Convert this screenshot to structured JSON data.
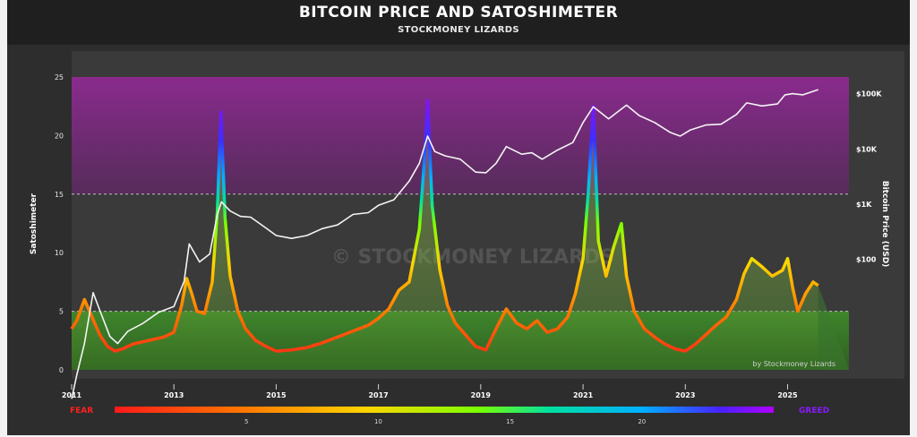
{
  "header": {
    "title": "BITCOIN PRICE AND SATOSHIMETER",
    "subtitle": "STOCKMONEY LIZARDS"
  },
  "chart_data": {
    "type": "line",
    "title": "BITCOIN PRICE AND SATOSHIMETER",
    "subtitle": "STOCKMONEY LIZARDS",
    "ylabel": "Satoshimeter",
    "y2label": "Bitcoin Price (USD)",
    "xlabel": "",
    "xlim": [
      2011.0,
      2026.2
    ],
    "ylim": [
      0,
      25
    ],
    "y2scale": "log",
    "y2lim": [
      1,
      200000
    ],
    "x_ticks": [
      "2011",
      "2013",
      "2015",
      "2017",
      "2019",
      "2021",
      "2023",
      "2025"
    ],
    "y_ticks": [
      "0",
      "5",
      "10",
      "15",
      "20",
      "25"
    ],
    "y2_ticks": [
      "$100",
      "$1K",
      "$10K",
      "$100K"
    ],
    "grid": false,
    "zones": [
      {
        "from": 0,
        "to": 5,
        "color": "#3f8f2a"
      },
      {
        "from": 15,
        "to": 25,
        "color": "#8a2a8c"
      }
    ],
    "watermark": "© STOCKMONEY LIZARDS",
    "credit": "by Stockmoney Lizards",
    "colorbar": {
      "left_label": "FEAR",
      "right_label": "GREED",
      "ticks": [
        "5",
        "10",
        "15",
        "20"
      ],
      "colors": [
        "#ff1a1a",
        "#ff7a00",
        "#ffd400",
        "#7cff00",
        "#00e0a0",
        "#00b0ff",
        "#6a00ff",
        "#b000ff"
      ]
    },
    "series": [
      {
        "name": "Satoshimeter",
        "axis": "left",
        "x": [
          2011.0,
          2011.1,
          2011.25,
          2011.4,
          2011.55,
          2011.7,
          2011.85,
          2012.0,
          2012.2,
          2012.4,
          2012.6,
          2012.8,
          2013.0,
          2013.15,
          2013.25,
          2013.35,
          2013.45,
          2013.6,
          2013.75,
          2013.85,
          2013.92,
          2014.0,
          2014.1,
          2014.25,
          2014.4,
          2014.6,
          2014.8,
          2015.0,
          2015.3,
          2015.6,
          2015.9,
          2016.2,
          2016.5,
          2016.8,
          2017.0,
          2017.2,
          2017.4,
          2017.6,
          2017.8,
          2017.9,
          2017.96,
          2018.05,
          2018.2,
          2018.35,
          2018.5,
          2018.7,
          2018.9,
          2019.1,
          2019.3,
          2019.5,
          2019.7,
          2019.9,
          2020.1,
          2020.3,
          2020.5,
          2020.7,
          2020.85,
          2021.0,
          2021.1,
          2021.2,
          2021.3,
          2021.45,
          2021.6,
          2021.75,
          2021.85,
          2022.0,
          2022.2,
          2022.4,
          2022.6,
          2022.8,
          2023.0,
          2023.2,
          2023.4,
          2023.6,
          2023.8,
          2024.0,
          2024.15,
          2024.3,
          2024.5,
          2024.7,
          2024.9,
          2025.0,
          2025.1,
          2025.2,
          2025.35,
          2025.5,
          2025.6
        ],
        "values": [
          3.5,
          4.2,
          6.0,
          4.5,
          3.0,
          2.0,
          1.6,
          1.8,
          2.2,
          2.4,
          2.6,
          2.8,
          3.2,
          5.5,
          7.8,
          6.5,
          5.0,
          4.8,
          7.5,
          13.5,
          22.0,
          13.0,
          8.0,
          5.0,
          3.5,
          2.5,
          2.0,
          1.6,
          1.7,
          1.9,
          2.3,
          2.8,
          3.3,
          3.8,
          4.4,
          5.2,
          6.8,
          7.5,
          12.0,
          18.0,
          23.0,
          14.0,
          8.5,
          5.5,
          4.0,
          3.0,
          2.0,
          1.7,
          3.5,
          5.2,
          4.0,
          3.5,
          4.2,
          3.2,
          3.5,
          4.5,
          6.5,
          9.5,
          15.0,
          22.5,
          11.0,
          8.0,
          10.5,
          12.5,
          8.0,
          5.0,
          3.5,
          2.8,
          2.2,
          1.8,
          1.6,
          2.2,
          3.0,
          3.8,
          4.5,
          6.0,
          8.2,
          9.5,
          8.8,
          8.0,
          8.5,
          9.5,
          7.0,
          5.0,
          6.5,
          7.5,
          7.2
        ]
      },
      {
        "name": "Bitcoin Price",
        "axis": "right",
        "x": [
          2011.0,
          2011.1,
          2011.25,
          2011.42,
          2011.55,
          2011.75,
          2011.9,
          2012.1,
          2012.4,
          2012.7,
          2013.0,
          2013.2,
          2013.3,
          2013.5,
          2013.7,
          2013.85,
          2013.93,
          2014.1,
          2014.3,
          2014.5,
          2014.8,
          2015.0,
          2015.3,
          2015.6,
          2015.9,
          2016.2,
          2016.5,
          2016.8,
          2017.0,
          2017.3,
          2017.6,
          2017.8,
          2017.96,
          2018.1,
          2018.3,
          2018.6,
          2018.9,
          2019.1,
          2019.3,
          2019.5,
          2019.8,
          2020.0,
          2020.2,
          2020.5,
          2020.8,
          2021.0,
          2021.2,
          2021.5,
          2021.85,
          2022.1,
          2022.4,
          2022.7,
          2022.9,
          2023.1,
          2023.4,
          2023.7,
          2024.0,
          2024.2,
          2024.5,
          2024.8,
          2024.95,
          2025.1,
          2025.3,
          2025.5,
          2025.6
        ],
        "values": [
          0.3,
          0.8,
          3.0,
          25,
          12,
          4,
          3,
          5,
          7,
          11,
          14,
          40,
          190,
          90,
          125,
          650,
          1100,
          750,
          600,
          580,
          370,
          270,
          240,
          270,
          360,
          420,
          650,
          700,
          950,
          1200,
          2600,
          5500,
          17000,
          9000,
          7500,
          6500,
          3800,
          3700,
          5500,
          11000,
          8000,
          8500,
          6500,
          9500,
          13000,
          30000,
          58000,
          35000,
          62000,
          40000,
          30000,
          20000,
          17000,
          22000,
          27000,
          28000,
          42000,
          68000,
          60000,
          65000,
          95000,
          100000,
          95000,
          110000,
          118000
        ]
      }
    ]
  }
}
